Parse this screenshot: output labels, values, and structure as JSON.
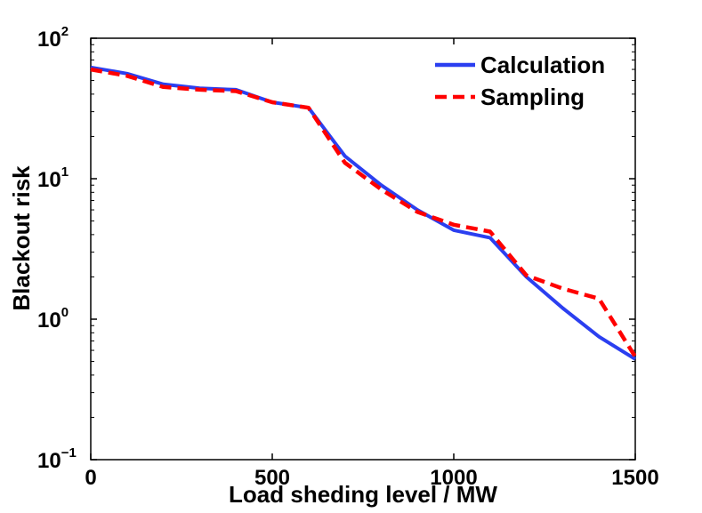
{
  "chart_data": {
    "type": "line",
    "title": "",
    "xlabel": "Load sheding level / MW",
    "ylabel": "Blackout risk",
    "xlim": [
      0,
      1500
    ],
    "ylim": [
      0.1,
      100
    ],
    "yscale": "log",
    "grid": false,
    "legend_position": "top-right",
    "x_ticks": [
      0,
      500,
      1000,
      1500
    ],
    "x_tick_labels": [
      "0",
      "500",
      "1000",
      "1500"
    ],
    "y_ticks": [
      0.1,
      1,
      10,
      100
    ],
    "y_tick_labels": [
      {
        "base": "10",
        "exp": "−1"
      },
      {
        "base": "10",
        "exp": "0"
      },
      {
        "base": "10",
        "exp": "1"
      },
      {
        "base": "10",
        "exp": "2"
      }
    ],
    "series": [
      {
        "name": "Calculation",
        "color": "#2b3ff0",
        "style": "solid",
        "x": [
          0,
          100,
          200,
          300,
          400,
          500,
          600,
          700,
          800,
          900,
          1000,
          1100,
          1200,
          1300,
          1400,
          1500
        ],
        "values": [
          62,
          56,
          47,
          44,
          43,
          35,
          32,
          14.5,
          9,
          6,
          4.3,
          3.8,
          2,
          1.2,
          0.75,
          0.52
        ]
      },
      {
        "name": "Sampling",
        "color": "#ff0000",
        "style": "dashed",
        "x": [
          0,
          100,
          200,
          300,
          400,
          500,
          600,
          700,
          800,
          900,
          1000,
          1100,
          1200,
          1300,
          1400,
          1500
        ],
        "values": [
          60,
          54,
          45,
          43,
          42,
          35,
          32,
          13,
          8.4,
          5.8,
          4.7,
          4.2,
          2.05,
          1.65,
          1.4,
          0.54
        ]
      }
    ]
  }
}
